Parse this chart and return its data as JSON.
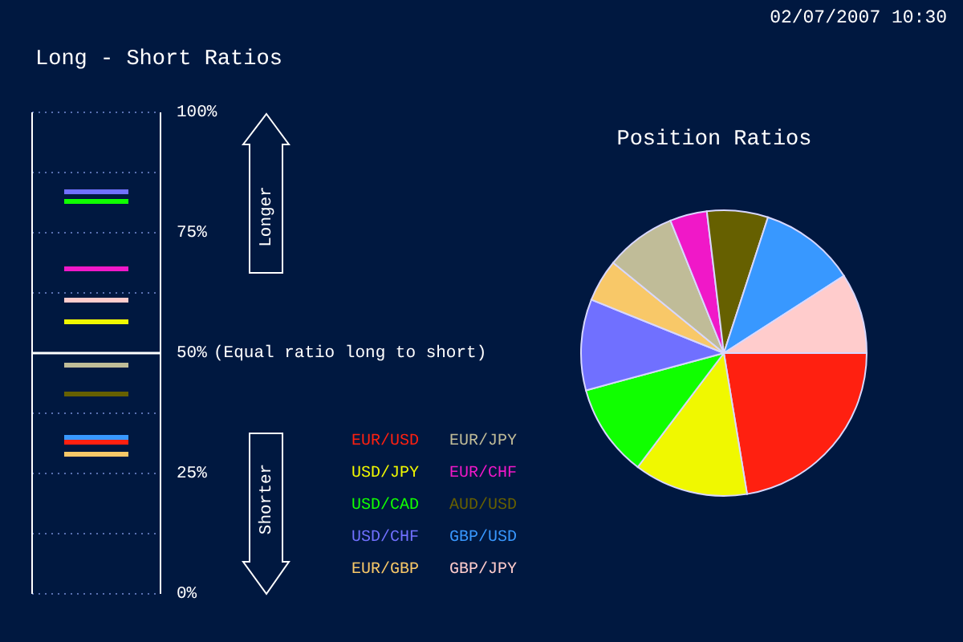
{
  "chart_data": [
    {
      "type": "line",
      "title": "Long - Short Ratios",
      "categories": [
        null,
        null
      ],
      "series": [
        {
          "name": "EUR/USD",
          "color": "#ff2010",
          "values": [
            31.5,
            31.5
          ]
        },
        {
          "name": "USD/JPY",
          "color": "#f0f800",
          "values": [
            56.5,
            56.5
          ]
        },
        {
          "name": "USD/CAD",
          "color": "#10ff00",
          "values": [
            81.5,
            81.5
          ]
        },
        {
          "name": "USD/CHF",
          "color": "#7070ff",
          "values": [
            83.5,
            83.5
          ]
        },
        {
          "name": "EUR/GBP",
          "color": "#f8c868",
          "values": [
            29,
            29
          ]
        },
        {
          "name": "EUR/JPY",
          "color": "#c0bc98",
          "values": [
            47.5,
            47.5
          ]
        },
        {
          "name": "EUR/CHF",
          "color": "#f018c8",
          "values": [
            67.5,
            67.5
          ]
        },
        {
          "name": "AUD/USD",
          "color": "#666000",
          "values": [
            41.5,
            41.5
          ]
        },
        {
          "name": "GBP/USD",
          "color": "#3898ff",
          "values": [
            32.5,
            32.5
          ]
        },
        {
          "name": "GBP/JPY",
          "color": "#ffcccc",
          "values": [
            61,
            61
          ]
        }
      ],
      "ylim": [
        0,
        100
      ],
      "yticks": [
        {
          "value": 0,
          "label": "0%"
        },
        {
          "value": 12.5,
          "label": null
        },
        {
          "value": 25,
          "label": "25%"
        },
        {
          "value": 37.5,
          "label": null
        },
        {
          "value": 50,
          "label": "50%"
        },
        {
          "value": 62.5,
          "label": null
        },
        {
          "value": 75,
          "label": "75%"
        },
        {
          "value": 87.5,
          "label": null
        },
        {
          "value": 100,
          "label": "100%"
        }
      ],
      "grid": "y",
      "legend": "bottom right",
      "tick_labels": "y",
      "marker": "none",
      "ref_lines": [
        {
          "axis": "y",
          "value": 50,
          "label": "(Equal ratio long to short)",
          "color": "#ffffff"
        }
      ],
      "annotations": [
        "Longer",
        "Shorter"
      ]
    },
    {
      "type": "pie",
      "title": "Position Ratios",
      "categories": [
        null,
        null,
        null,
        null,
        null,
        null,
        null,
        null,
        null,
        null
      ],
      "values": [
        22.4,
        12.9,
        10.5,
        10.3,
        4.8,
        8.0,
        4.2,
        6.9,
        10.9,
        9.1
      ],
      "colors": [
        "#ff2010",
        "#f0f800",
        "#10ff00",
        "#7070ff",
        "#f8c868",
        "#c0bc98",
        "#f018c8",
        "#666000",
        "#3898ff",
        "#ffcccc"
      ],
      "annotations": [
        "02/07/2007 10:30"
      ]
    }
  ]
}
